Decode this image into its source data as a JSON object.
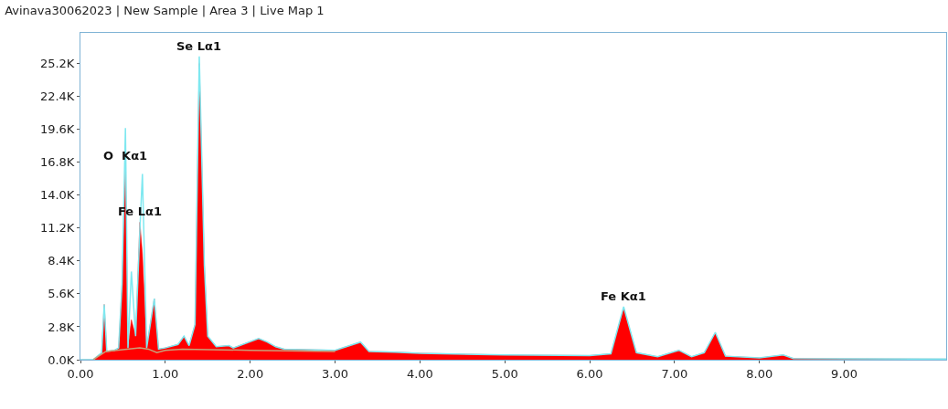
{
  "chart_data": {
    "type": "area",
    "title": "Avinava30062023 | New Sample | Area 3 | Live Map 1",
    "x": [
      0,
      0.15,
      0.2,
      0.25,
      0.28,
      0.31,
      0.4,
      0.45,
      0.49,
      0.53,
      0.56,
      0.6,
      0.65,
      0.7,
      0.73,
      0.78,
      0.87,
      0.92,
      1.0,
      1.15,
      1.22,
      1.28,
      1.35,
      1.4,
      1.46,
      1.5,
      1.6,
      1.75,
      1.8,
      2.1,
      2.2,
      2.3,
      2.4,
      3.0,
      3.3,
      3.4,
      3.7,
      4.0,
      5.0,
      6.0,
      6.25,
      6.4,
      6.55,
      6.8,
      7.05,
      7.2,
      7.35,
      7.48,
      7.6,
      8.0,
      8.28,
      8.4,
      9.0,
      10.2
    ],
    "series": [
      {
        "type": "line",
        "color": "#7fe8f0",
        "values": [
          0,
          0,
          300,
          600,
          4700,
          700,
          800,
          1000,
          6400,
          19700,
          1000,
          7500,
          2000,
          11000,
          15800,
          1000,
          5200,
          900,
          1000,
          1300,
          2000,
          1200,
          3000,
          25800,
          8000,
          2000,
          1100,
          1200,
          1000,
          1800,
          1500,
          1100,
          900,
          800,
          1500,
          700,
          650,
          550,
          400,
          350,
          500,
          4500,
          600,
          250,
          800,
          250,
          600,
          2330,
          300,
          150,
          400,
          100,
          80,
          50
        ]
      },
      {
        "color": "#ff0000",
        "values": [
          0,
          0,
          300,
          600,
          4700,
          700,
          800,
          1000,
          6400,
          16500,
          1000,
          3400,
          2000,
          11700,
          9000,
          1000,
          5200,
          900,
          1000,
          1300,
          2000,
          1200,
          3000,
          25200,
          8000,
          2000,
          1100,
          1200,
          1000,
          1800,
          1500,
          1100,
          900,
          800,
          1500,
          700,
          650,
          550,
          400,
          350,
          500,
          4400,
          600,
          250,
          800,
          250,
          600,
          2300,
          300,
          150,
          400,
          100,
          80,
          50
        ]
      },
      {
        "type": "line",
        "color": "#c8a07a",
        "x": [
          0.15,
          0.3,
          0.5,
          0.7,
          0.8,
          0.9,
          1.0,
          1.2,
          2.0,
          3.0
        ],
        "values": [
          0,
          700,
          850,
          1000,
          900,
          600,
          800,
          900,
          800,
          700
        ]
      }
    ],
    "xlim": [
      0,
      10.2
    ],
    "xticks": [
      {
        "value": 0,
        "label": "0.00"
      },
      {
        "value": 1,
        "label": "1.00"
      },
      {
        "value": 2,
        "label": "2.00"
      },
      {
        "value": 3,
        "label": "3.00"
      },
      {
        "value": 4,
        "label": "4.00"
      },
      {
        "value": 5,
        "label": "5.00"
      },
      {
        "value": 6,
        "label": "6.00"
      },
      {
        "value": 7,
        "label": "7.00"
      },
      {
        "value": 8,
        "label": "8.00"
      },
      {
        "value": 9,
        "label": "9.00"
      }
    ],
    "ylim": [
      0,
      27800
    ],
    "yticks": [
      {
        "value": 0,
        "label": "0.0K"
      },
      {
        "value": 2800,
        "label": "2.8K"
      },
      {
        "value": 5600,
        "label": "5.6K"
      },
      {
        "value": 8400,
        "label": "8.4K"
      },
      {
        "value": 11200,
        "label": "11.2K"
      },
      {
        "value": 14000,
        "label": "14.0K"
      },
      {
        "value": 16800,
        "label": "16.8K"
      },
      {
        "value": 19600,
        "label": "19.6K"
      },
      {
        "value": 22400,
        "label": "22.4K"
      },
      {
        "value": 25200,
        "label": "25.2K"
      }
    ],
    "annotations": [
      {
        "text": "Se Lα1",
        "x": 1.4,
        "y": 25800
      },
      {
        "text": "O  Kα1",
        "x": 0.53,
        "y": 16500
      },
      {
        "text": "Fe Lα1",
        "x": 0.7,
        "y": 11700
      },
      {
        "text": "Fe Kα1",
        "x": 6.4,
        "y": 4500
      }
    ],
    "grid": false,
    "marker": "none"
  }
}
